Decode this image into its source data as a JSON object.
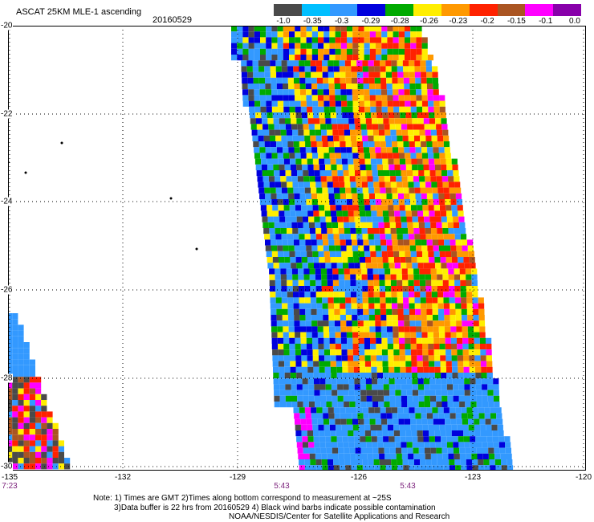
{
  "header": {
    "title": "ASCAT 25KM MLE-1 ascending",
    "date": "20160529"
  },
  "legend": {
    "colors": [
      "#4a4a4a",
      "#00bfff",
      "#3399ff",
      "#0000dd",
      "#00aa00",
      "#ffee00",
      "#ff9900",
      "#ff2200",
      "#aa5522",
      "#ff00ff",
      "#8800aa"
    ],
    "labels": [
      "-1.0",
      "-0.35",
      "-0.3",
      "-0.29",
      "-0.28",
      "-0.26",
      "-0.23",
      "-0.2",
      "-0.15",
      "-0.1",
      "0.0"
    ]
  },
  "axes": {
    "lat_labels": [
      "-20",
      "-22",
      "-24",
      "-26",
      "-28",
      "-30"
    ],
    "lon_labels": [
      "-135",
      "-132",
      "-129",
      "-126",
      "-123",
      "-120"
    ],
    "time_labels": [
      "7:23",
      "5:43",
      "5:43"
    ]
  },
  "notes": {
    "line1": "Note: 1) Times are GMT 2)Times along bottom correspond to measurement at ~25S",
    "line2": "3)Data buffer is 22 hrs from 20160529 4) Black wind barbs indicate possible contamination",
    "line3": "NOAA/NESDIS/Center for Satellite Applications and Research"
  }
}
